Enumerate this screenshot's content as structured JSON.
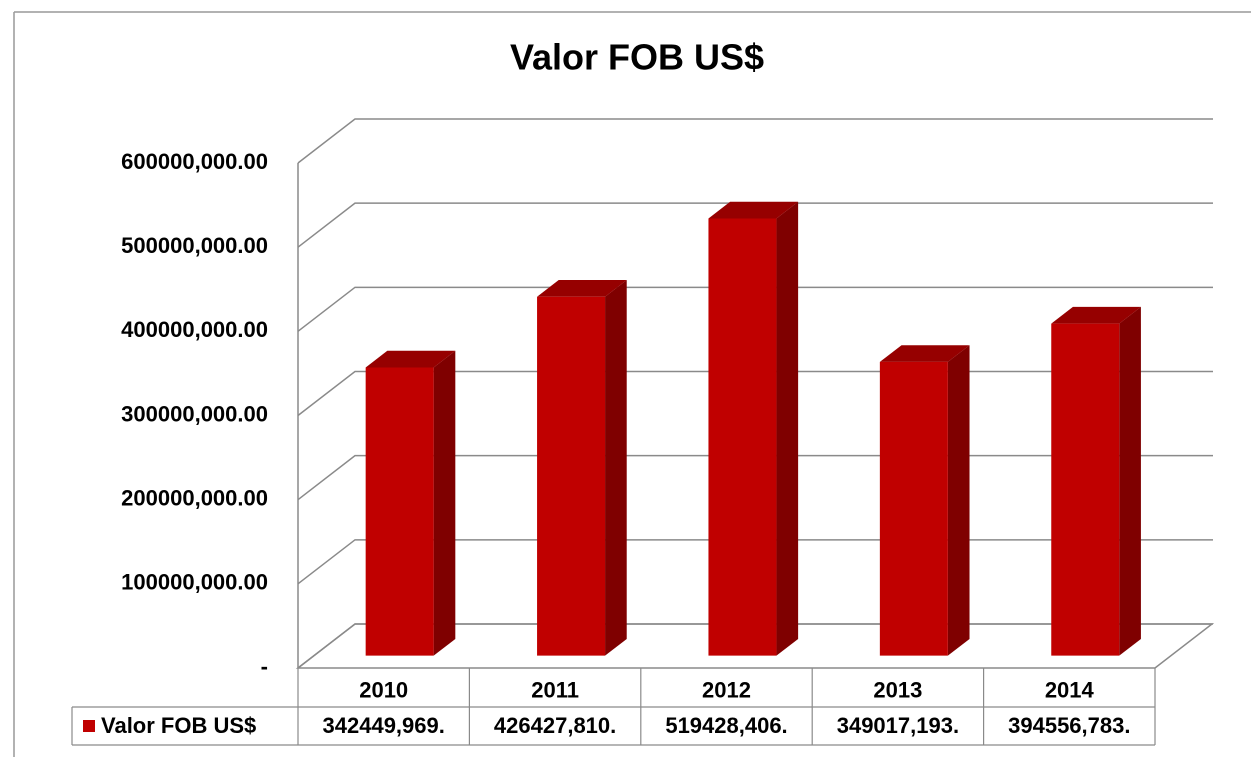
{
  "chart_data": {
    "type": "bar3d",
    "title": "Valor FOB US$",
    "categories": [
      "2010",
      "2011",
      "2012",
      "2013",
      "2014"
    ],
    "series": [
      {
        "name": "Valor FOB US$",
        "color": "#c00000",
        "values": [
          342449969,
          426427810,
          519428406,
          349017193,
          394556783
        ],
        "value_labels": [
          "342449,969.",
          "426427,810.",
          "519428,406.",
          "349017,193.",
          "394556,783."
        ]
      }
    ],
    "ylim": [
      0,
      600000000
    ],
    "yticks": [
      {
        "value": 0,
        "label": "-"
      },
      {
        "value": 100000000,
        "label": "100000,000.00"
      },
      {
        "value": 200000000,
        "label": "200000,000.00"
      },
      {
        "value": 300000000,
        "label": "300000,000.00"
      },
      {
        "value": 400000000,
        "label": "400000,000.00"
      },
      {
        "value": 500000000,
        "label": "500000,000.00"
      },
      {
        "value": 600000000,
        "label": "600000,000.00"
      }
    ],
    "grid": true,
    "data_table": true
  }
}
